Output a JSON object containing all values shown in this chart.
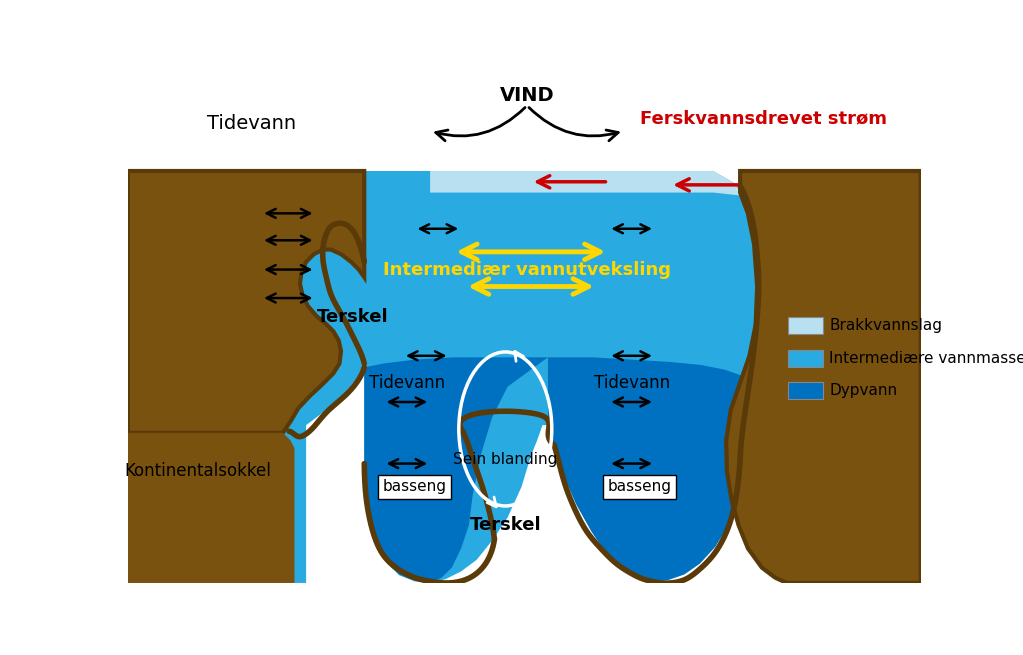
{
  "bg_color": "#ffffff",
  "color_brakkvann": "#b8e0f0",
  "color_intermediar": "#29abe2",
  "color_dypvann": "#0070c0",
  "color_land_brown": "#7a5210",
  "color_land_dark": "#5a3a08",
  "color_shelf_blue": "#29abe2",
  "title_vind": "VIND",
  "label_tidevann_topleft": "Tidevann",
  "label_ferskvann": "Ferskvannsdrevet strøm",
  "label_intermediar": "Intermediær vannutveksling",
  "label_terskel_left": "Terskel",
  "label_terskel_bottom": "Terskel",
  "label_basseng_left": "basseng",
  "label_basseng_right": "basseng",
  "label_tidevann_left": "Tidevann",
  "label_tidevann_right": "Tidevann",
  "label_sein": "Sein blanding",
  "label_kontinental": "Kontinentalsokkel",
  "legend_brakkvann": "Brakkvannslag",
  "legend_intermediar": "Intermediære vannmasser",
  "legend_dypvann": "Dypvann",
  "color_red_arrow": "#cc0000",
  "color_yellow_arrow": "#FFD700"
}
